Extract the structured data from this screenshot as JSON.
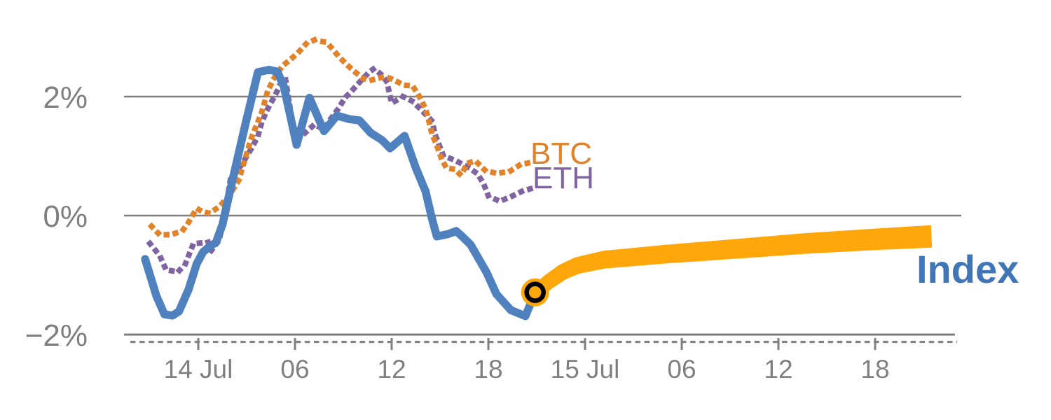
{
  "chart_data": {
    "type": "line",
    "title": "",
    "description": "Intraday percentage performance of BTC, ETH and a crypto Index over 14-15 Jul, with a thick amber forecast/continuation band for the Index starting at a circled transition point.",
    "x_axis": {
      "unit": "hours since 14 Jul 00:00",
      "tick_hours": [
        0,
        6,
        12,
        18,
        24,
        30,
        36,
        42
      ],
      "tick_labels": [
        "14 Jul",
        "06",
        "12",
        "18",
        "15 Jul",
        "06",
        "12",
        "18"
      ]
    },
    "y_axis": {
      "unit": "percent",
      "tick_values": [
        2,
        0,
        -2
      ],
      "tick_labels": [
        "2%",
        "0%",
        "−2%"
      ],
      "ylim": [
        -2.4,
        3.2
      ]
    },
    "grid": "horizontal gridlines at 2%, 0%, -2%; dashed minor tick strip under baseline",
    "legend_position": "inline labels at line ends",
    "series": [
      {
        "name": "Index",
        "style": "solid",
        "color": "#4E81BD",
        "points": [
          [
            -3.3,
            -0.73
          ],
          [
            -2.6,
            -1.35
          ],
          [
            -2.1,
            -1.66
          ],
          [
            -1.6,
            -1.68
          ],
          [
            -1.2,
            -1.61
          ],
          [
            -0.6,
            -1.24
          ],
          [
            -0.1,
            -0.81
          ],
          [
            0.3,
            -0.61
          ],
          [
            0.7,
            -0.52
          ],
          [
            1.1,
            -0.45
          ],
          [
            1.5,
            -0.15
          ],
          [
            2.0,
            0.45
          ],
          [
            2.9,
            1.51
          ],
          [
            3.7,
            2.41
          ],
          [
            4.4,
            2.45
          ],
          [
            4.9,
            2.42
          ],
          [
            5.3,
            2.18
          ],
          [
            6.1,
            1.19
          ],
          [
            6.9,
            1.98
          ],
          [
            7.8,
            1.42
          ],
          [
            8.6,
            1.68
          ],
          [
            9.4,
            1.62
          ],
          [
            10.0,
            1.6
          ],
          [
            10.7,
            1.39
          ],
          [
            11.4,
            1.27
          ],
          [
            11.9,
            1.13
          ],
          [
            12.8,
            1.34
          ],
          [
            13.5,
            0.8
          ],
          [
            14.1,
            0.41
          ],
          [
            14.5,
            -0.05
          ],
          [
            14.8,
            -0.35
          ],
          [
            15.5,
            -0.31
          ],
          [
            16.0,
            -0.26
          ],
          [
            16.3,
            -0.33
          ],
          [
            16.9,
            -0.49
          ],
          [
            17.9,
            -0.96
          ],
          [
            18.5,
            -1.32
          ],
          [
            19.4,
            -1.59
          ],
          [
            20.3,
            -1.69
          ],
          [
            20.9,
            -1.29
          ]
        ]
      },
      {
        "name": "BTC",
        "style": "dotted",
        "color": "#E0832B",
        "points": [
          [
            -2.9,
            -0.18
          ],
          [
            -2.4,
            -0.32
          ],
          [
            -1.7,
            -0.32
          ],
          [
            -1.0,
            -0.26
          ],
          [
            -0.6,
            -0.11
          ],
          [
            -0.1,
            0.12
          ],
          [
            0.3,
            0.06
          ],
          [
            0.7,
            0.04
          ],
          [
            1.3,
            0.15
          ],
          [
            1.9,
            0.33
          ],
          [
            2.5,
            0.59
          ],
          [
            3.0,
            1.04
          ],
          [
            3.3,
            1.31
          ],
          [
            3.6,
            1.51
          ],
          [
            3.9,
            1.71
          ],
          [
            4.1,
            1.89
          ],
          [
            4.3,
            2.09
          ],
          [
            4.7,
            2.31
          ],
          [
            5.2,
            2.51
          ],
          [
            5.7,
            2.62
          ],
          [
            6.2,
            2.74
          ],
          [
            6.7,
            2.89
          ],
          [
            7.2,
            2.95
          ],
          [
            7.8,
            2.92
          ],
          [
            8.2,
            2.84
          ],
          [
            8.7,
            2.68
          ],
          [
            9.2,
            2.54
          ],
          [
            9.7,
            2.42
          ],
          [
            10.2,
            2.31
          ],
          [
            10.6,
            2.27
          ],
          [
            11.5,
            2.33
          ],
          [
            11.9,
            2.31
          ],
          [
            12.8,
            2.19
          ],
          [
            13.3,
            2.18
          ],
          [
            13.7,
            2.01
          ],
          [
            14.1,
            1.8
          ],
          [
            14.3,
            1.6
          ],
          [
            14.5,
            1.37
          ],
          [
            14.8,
            1.18
          ],
          [
            15.1,
            0.95
          ],
          [
            15.4,
            0.8
          ],
          [
            15.9,
            0.78
          ],
          [
            16.3,
            0.68
          ],
          [
            16.7,
            0.88
          ],
          [
            17.2,
            0.92
          ],
          [
            17.8,
            0.76
          ],
          [
            18.5,
            0.71
          ],
          [
            19.3,
            0.74
          ],
          [
            20.0,
            0.86
          ],
          [
            20.6,
            0.89
          ]
        ]
      },
      {
        "name": "ETH",
        "style": "dotted",
        "color": "#8064A2",
        "points": [
          [
            -3.0,
            -0.47
          ],
          [
            -2.4,
            -0.67
          ],
          [
            -2.0,
            -0.91
          ],
          [
            -1.6,
            -0.93
          ],
          [
            -1.3,
            -0.96
          ],
          [
            -0.8,
            -0.81
          ],
          [
            -0.3,
            -0.47
          ],
          [
            0.2,
            -0.46
          ],
          [
            0.6,
            -0.44
          ],
          [
            0.8,
            -0.59
          ],
          [
            1.3,
            -0.41
          ],
          [
            1.7,
            0.1
          ],
          [
            2.0,
            0.62
          ],
          [
            2.7,
            0.86
          ],
          [
            2.9,
            0.95
          ],
          [
            3.3,
            1.13
          ],
          [
            3.7,
            1.33
          ],
          [
            3.9,
            1.53
          ],
          [
            4.2,
            1.74
          ],
          [
            4.4,
            1.84
          ],
          [
            4.8,
            2.04
          ],
          [
            5.1,
            2.21
          ],
          [
            5.4,
            2.31
          ],
          [
            5.7,
            1.8
          ],
          [
            5.9,
            1.45
          ],
          [
            6.2,
            1.38
          ],
          [
            6.5,
            1.36
          ],
          [
            7.2,
            1.53
          ],
          [
            7.8,
            1.45
          ],
          [
            8.2,
            1.62
          ],
          [
            8.7,
            1.8
          ],
          [
            9.1,
            1.98
          ],
          [
            9.5,
            2.09
          ],
          [
            10.1,
            2.27
          ],
          [
            10.6,
            2.41
          ],
          [
            10.9,
            2.47
          ],
          [
            11.4,
            2.36
          ],
          [
            11.7,
            2.25
          ],
          [
            12.0,
            1.89
          ],
          [
            12.7,
            2.0
          ],
          [
            13.3,
            1.92
          ],
          [
            13.9,
            1.76
          ],
          [
            14.5,
            1.59
          ],
          [
            14.7,
            1.36
          ],
          [
            15.2,
            1.01
          ],
          [
            16.0,
            0.92
          ],
          [
            16.7,
            0.82
          ],
          [
            17.3,
            0.71
          ],
          [
            17.7,
            0.54
          ],
          [
            18.0,
            0.33
          ],
          [
            18.7,
            0.24
          ],
          [
            19.5,
            0.33
          ],
          [
            20.1,
            0.41
          ],
          [
            20.6,
            0.45
          ]
        ]
      },
      {
        "name": "Index forecast",
        "style": "thick-band",
        "color": "#FFA60A",
        "points": [
          [
            20.9,
            -1.29
          ],
          [
            21.8,
            -1.1
          ],
          [
            22.6,
            -0.95
          ],
          [
            23.5,
            -0.84
          ],
          [
            25.2,
            -0.74
          ],
          [
            28.9,
            -0.65
          ],
          [
            33.3,
            -0.56
          ],
          [
            37.6,
            -0.47
          ],
          [
            41.9,
            -0.4
          ],
          [
            45.5,
            -0.35
          ]
        ]
      }
    ],
    "annotations": {
      "transition_marker": {
        "t": 20.9,
        "value_pct": -1.29,
        "shape": "circle",
        "fill": "#FFA60A",
        "ring_color": "#000000"
      }
    }
  },
  "labels": {
    "btc": "BTC",
    "eth": "ETH",
    "index": "Index"
  },
  "colors": {
    "index_blue": "#4E81BD",
    "index_label_blue": "#4076B8",
    "btc_orange": "#E0832B",
    "eth_purple": "#8064A2",
    "forecast_amber": "#FFA60A",
    "axis_gray": "#7F7F7F",
    "marker_ring_black": "#000000"
  }
}
